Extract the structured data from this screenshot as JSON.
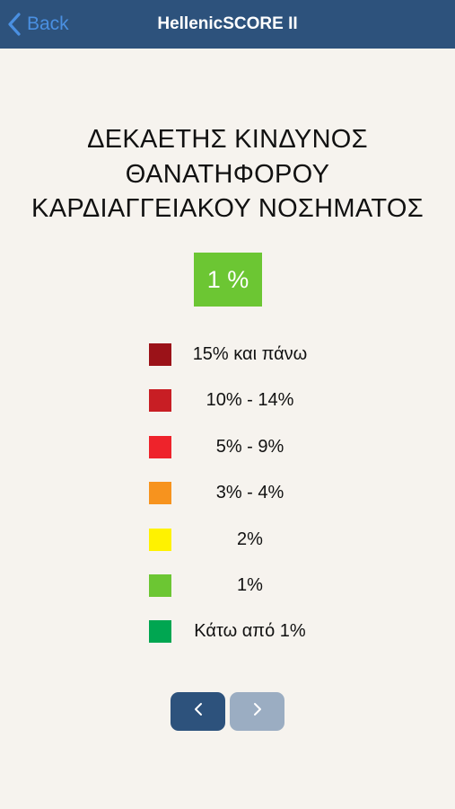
{
  "navbar": {
    "back_label": "Back",
    "title": "HellenicSCORE II"
  },
  "headline": {
    "line1": "ΔΕΚΑΕΤΗΣ ΚΙΝΔΥΝΟΣ",
    "line2": "ΘΑΝΑΤΗΦΟΡΟΥ",
    "line3": "ΚΑΡΔΙΑΓΓΕΙΑΚΟΥ ΝΟΣΗΜΑΤΟΣ"
  },
  "result": {
    "value": "1 %",
    "color": "#6cc633"
  },
  "legend": [
    {
      "label": "15% και πάνω",
      "color": "#9b1218"
    },
    {
      "label": "10% - 14%",
      "color": "#c81e24"
    },
    {
      "label": "5% - 9%",
      "color": "#ee232b"
    },
    {
      "label": "3% - 4%",
      "color": "#f7931e"
    },
    {
      "label": "2%",
      "color": "#fff200"
    },
    {
      "label": "1%",
      "color": "#6cc633"
    },
    {
      "label": "Κάτω από 1%",
      "color": "#00a651"
    }
  ],
  "pager": {
    "prev_icon": "chevron-left-icon",
    "next_icon": "chevron-right-icon",
    "prev_color": "#2d527c",
    "next_color": "#9badc2",
    "next_enabled": false
  },
  "colors": {
    "navbar": "#2d527c",
    "back": "#4a90e2",
    "background": "#f6f3ee"
  }
}
